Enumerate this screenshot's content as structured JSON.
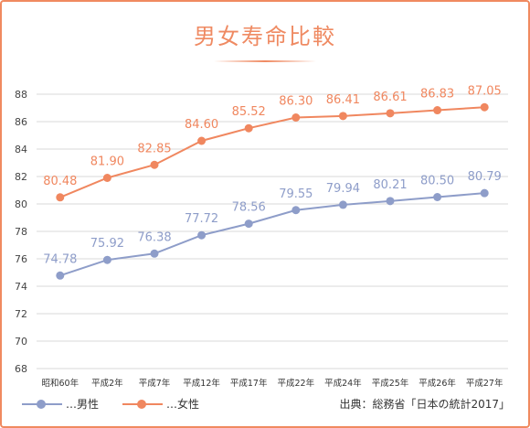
{
  "title": "男女寿命比較",
  "source": "出典：総務省「日本の統計2017」",
  "colors": {
    "male": "#8e9dc9",
    "female": "#f0875f",
    "frame": "#f08a60",
    "grid": "#d9d9d9"
  },
  "chart_data": {
    "type": "line",
    "title": "男女寿命比較",
    "categories": [
      "昭和60年",
      "平成2年",
      "平成7年",
      "平成12年",
      "平成17年",
      "平成22年",
      "平成24年",
      "平成25年",
      "平成26年",
      "平成27年"
    ],
    "ylim": [
      68,
      88
    ],
    "yticks": [
      68,
      70,
      72,
      74,
      76,
      78,
      80,
      82,
      84,
      86,
      88
    ],
    "grid": true,
    "legend_position": "bottom-left",
    "series": [
      {
        "name": "…男性",
        "color": "#8e9dc9",
        "values": [
          74.78,
          75.92,
          76.38,
          77.72,
          78.56,
          79.55,
          79.94,
          80.21,
          80.5,
          80.79
        ],
        "labels": [
          "74.78",
          "75.92",
          "76.38",
          "77.72",
          "78.56",
          "79.55",
          "79.94",
          "80.21",
          "80.50",
          "80.79"
        ]
      },
      {
        "name": "…女性",
        "color": "#f0875f",
        "values": [
          80.48,
          81.9,
          82.85,
          84.6,
          85.52,
          86.3,
          86.41,
          86.61,
          86.83,
          87.05
        ],
        "labels": [
          "80.48",
          "81.90",
          "82.85",
          "84.60",
          "85.52",
          "86.30",
          "86.41",
          "86.61",
          "86.83",
          "87.05"
        ]
      }
    ]
  }
}
